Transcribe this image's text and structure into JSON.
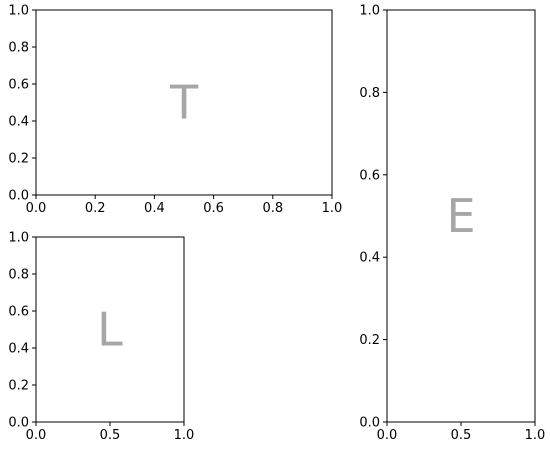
{
  "chart_data": [
    {
      "type": "scatter",
      "panel": "T",
      "panel_text": "T",
      "xlim": [
        0,
        1
      ],
      "ylim": [
        0,
        1
      ],
      "x_ticks": [
        "0.0",
        "0.2",
        "0.4",
        "0.6",
        "0.8",
        "1.0"
      ],
      "y_ticks": [
        "0.0",
        "0.2",
        "0.4",
        "0.6",
        "0.8",
        "1.0"
      ],
      "x": [],
      "y": [],
      "grid": false
    },
    {
      "type": "scatter",
      "panel": "E",
      "panel_text": "E",
      "xlim": [
        0,
        1
      ],
      "ylim": [
        0,
        1
      ],
      "x_ticks": [
        "0.0",
        "0.5",
        "1.0"
      ],
      "y_ticks": [
        "0.0",
        "0.2",
        "0.4",
        "0.6",
        "0.8",
        "1.0"
      ],
      "x": [],
      "y": [],
      "grid": false
    },
    {
      "type": "scatter",
      "panel": "L",
      "panel_text": "L",
      "xlim": [
        0,
        1
      ],
      "ylim": [
        0,
        1
      ],
      "x_ticks": [
        "0.0",
        "0.5",
        "1.0"
      ],
      "y_ticks": [
        "0.0",
        "0.2",
        "0.4",
        "0.6",
        "0.8",
        "1.0"
      ],
      "x": [],
      "y": [],
      "grid": false
    }
  ],
  "colors": {
    "axes": "#000000",
    "panel_label": "#a6a6a6",
    "background": "#ffffff"
  }
}
